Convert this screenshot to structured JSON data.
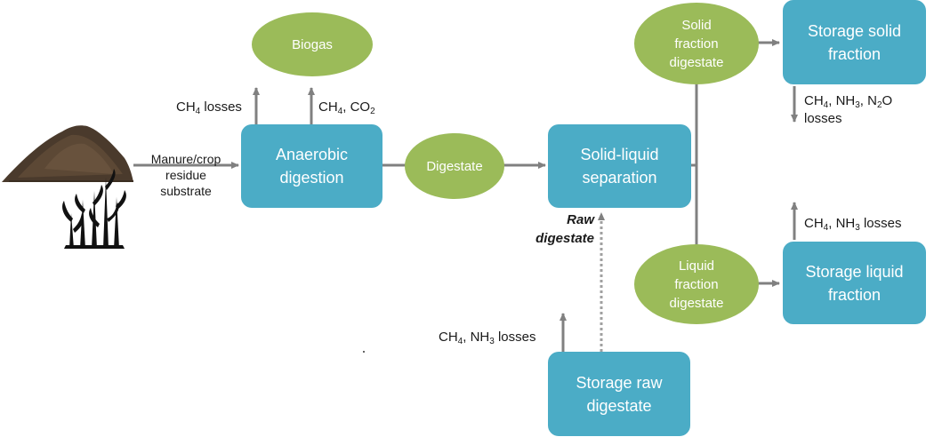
{
  "colors": {
    "process_box": "#4bacc6",
    "product_ellipse": "#9bbb59",
    "arrow": "#808080",
    "soil": "#4a3a2c",
    "plant": "#111111"
  },
  "icons": {
    "soil_pile": "soil-pile-icon",
    "plant": "corn-plant-icon"
  },
  "input": {
    "line1": "Manure/crop",
    "line2": "residue",
    "line3": "substrate"
  },
  "boxes": {
    "anaerobic_l1": "Anaerobic",
    "anaerobic_l2": "digestion",
    "separation_l1": "Solid-liquid",
    "separation_l2": "separation",
    "storage_solid_l1": "Storage solid",
    "storage_solid_l2": "fraction",
    "storage_liquid_l1": "Storage liquid",
    "storage_liquid_l2": "fraction",
    "storage_raw_l1": "Storage raw",
    "storage_raw_l2": "digestate"
  },
  "ellipses": {
    "biogas": "Biogas",
    "digestate": "Digestate",
    "solid_l1": "Solid",
    "solid_l2": "fraction",
    "solid_l3": "digestate",
    "liquid_l1": "Liquid",
    "liquid_l2": "fraction",
    "liquid_l3": "digestate"
  },
  "raw_label": {
    "line1": "Raw",
    "line2": "digestate"
  },
  "emissions": {
    "ch4_losses": {
      "ch": "CH",
      "sub4": "4",
      "rest": " losses"
    },
    "ch4_co2": {
      "ch": "CH",
      "sub4": "4",
      "mid": ", CO",
      "sub2": "2"
    },
    "solid_storage": {
      "ch": "CH",
      "sub4": "4",
      "nh": ", NH",
      "sub3": "3",
      "n": ", N",
      "sub2": "2",
      "o": "O",
      "line2": "losses"
    },
    "liquid_storage": {
      "ch": "CH",
      "sub4": "4",
      "nh": ", NH",
      "sub3": "3",
      "rest": " losses"
    },
    "raw_storage": {
      "ch": "CH",
      "sub4": "4",
      "nh": ", NH",
      "sub3": "3",
      "rest": " losses"
    }
  }
}
